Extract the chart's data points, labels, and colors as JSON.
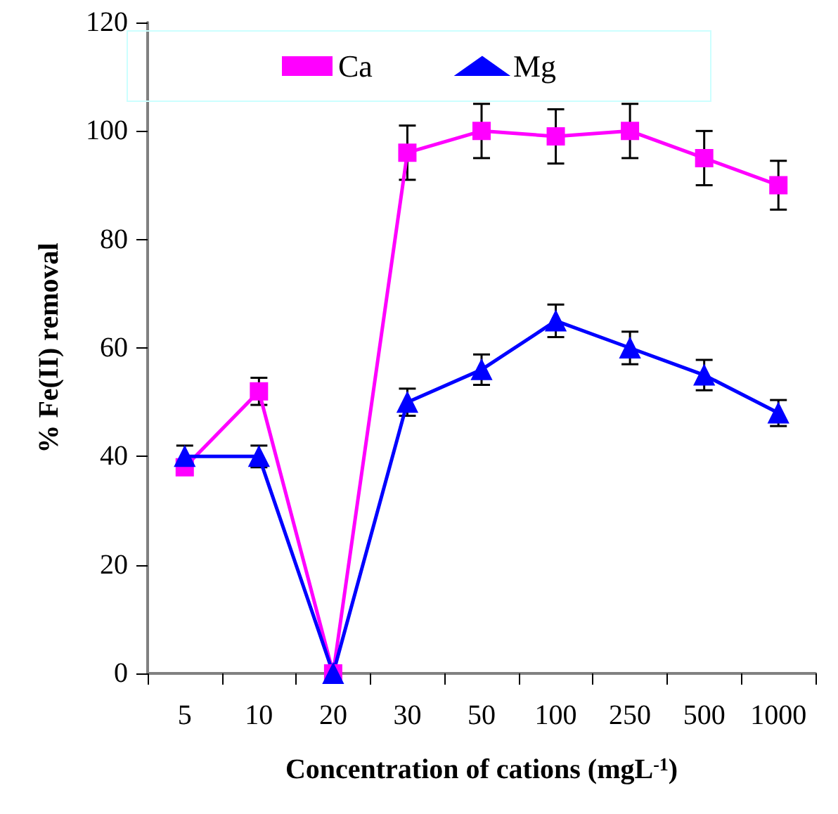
{
  "chart_data": {
    "type": "line",
    "xlabel": "Concentration of cations (mgL$^{-1}$)",
    "ylabel": "% Fe(II) removal",
    "categories": [
      "5",
      "10",
      "20",
      "30",
      "50",
      "100",
      "250",
      "500",
      "1000"
    ],
    "series": [
      {
        "name": "Ca",
        "color": "#ff00ff",
        "marker": "square",
        "values": [
          38,
          52,
          0,
          96,
          100,
          99,
          100,
          95,
          90
        ],
        "errors": [
          null,
          2.5,
          null,
          5,
          5,
          5,
          5,
          5,
          4.5
        ]
      },
      {
        "name": "Mg",
        "color": "#0000ff",
        "marker": "triangle",
        "values": [
          40,
          40,
          0,
          50,
          56,
          65,
          60,
          55,
          48
        ],
        "errors": [
          2,
          2,
          null,
          2.5,
          2.8,
          3,
          3,
          2.8,
          2.4
        ]
      }
    ],
    "ylim": [
      0,
      120
    ],
    "yticks": [
      0,
      20,
      40,
      60,
      80,
      100,
      120
    ],
    "legend": "top",
    "grid": false,
    "line_style": "solid"
  }
}
